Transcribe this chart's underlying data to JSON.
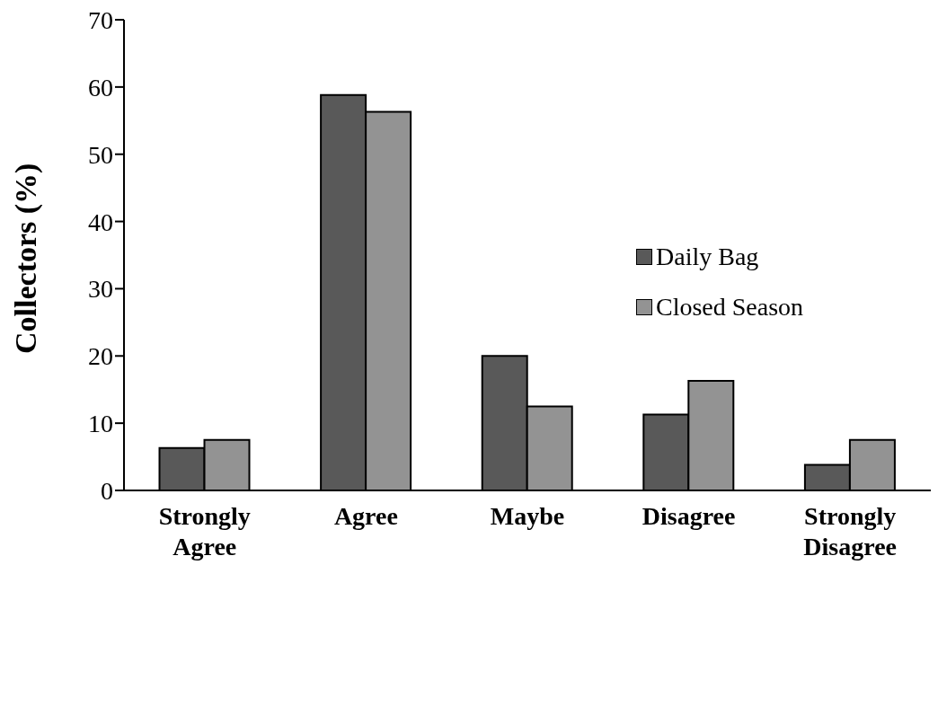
{
  "chart_data": {
    "type": "bar",
    "ylabel": "Collectors  (%)",
    "categories": [
      "Strongly Agree",
      "Agree",
      "Maybe",
      "Disagree",
      "Strongly Disagree"
    ],
    "series": [
      {
        "name": "Daily Bag",
        "color": "#595959",
        "values": [
          6.3,
          58.8,
          20,
          11.3,
          3.8
        ]
      },
      {
        "name": "Closed Season",
        "color": "#939393",
        "values": [
          7.5,
          56.3,
          12.5,
          16.3,
          7.5
        ]
      }
    ],
    "ylim": [
      0,
      70
    ],
    "yticks": [
      0,
      10,
      20,
      30,
      40,
      50,
      60,
      70
    ],
    "grid": false,
    "legend": "right"
  }
}
